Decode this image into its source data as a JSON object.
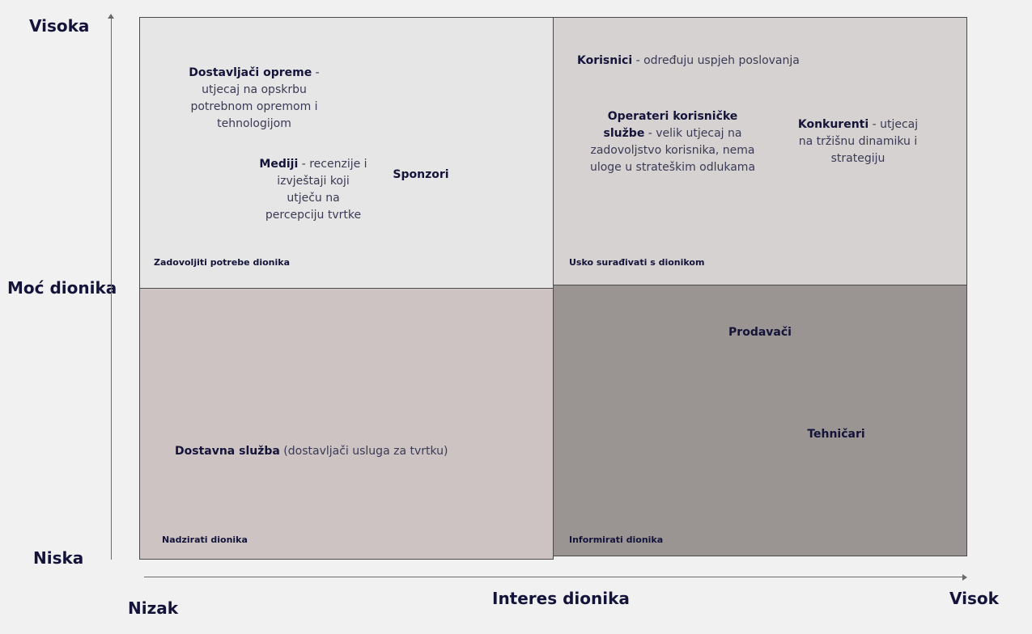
{
  "axes": {
    "y_title": "Moć dionika",
    "y_high": "Visoka",
    "y_low": "Niska",
    "x_title": "Interes dionika",
    "x_low": "Nizak",
    "x_high": "Visok"
  },
  "quadrants": {
    "top_left": {
      "caption": "Zadovoljiti potrebe dionika",
      "stakeholders": [
        {
          "name": "Dostavljači opreme",
          "desc": " - utjecaj na opskrbu potrebnom opremom i tehnologijom"
        },
        {
          "name": "Mediji",
          "desc": " - recenzije i izvještaji koji utječu na percepciju tvrtke"
        },
        {
          "name": "Sponzori",
          "desc": ""
        }
      ]
    },
    "top_right": {
      "caption": "Usko surađivati s dionikom",
      "stakeholders": [
        {
          "name": "Korisnici",
          "desc": " - određuju uspjeh poslovanja"
        },
        {
          "name": "Operateri korisničke službe",
          "desc": " - velik utjecaj na zadovoljstvo korisnika, nema uloge u strateškim odlukama"
        },
        {
          "name": "Konkurenti",
          "desc": " - utjecaj na tržišnu dinamiku i strategiju"
        }
      ]
    },
    "bottom_left": {
      "caption": "Nadzirati dionika",
      "stakeholders": [
        {
          "name": "Dostavna služba",
          "desc": " (dostavljači usluga za tvrtku)"
        }
      ]
    },
    "bottom_right": {
      "caption": "Informirati dionika",
      "stakeholders": [
        {
          "name": "Prodavači",
          "desc": ""
        },
        {
          "name": "Tehničari",
          "desc": ""
        }
      ]
    }
  }
}
